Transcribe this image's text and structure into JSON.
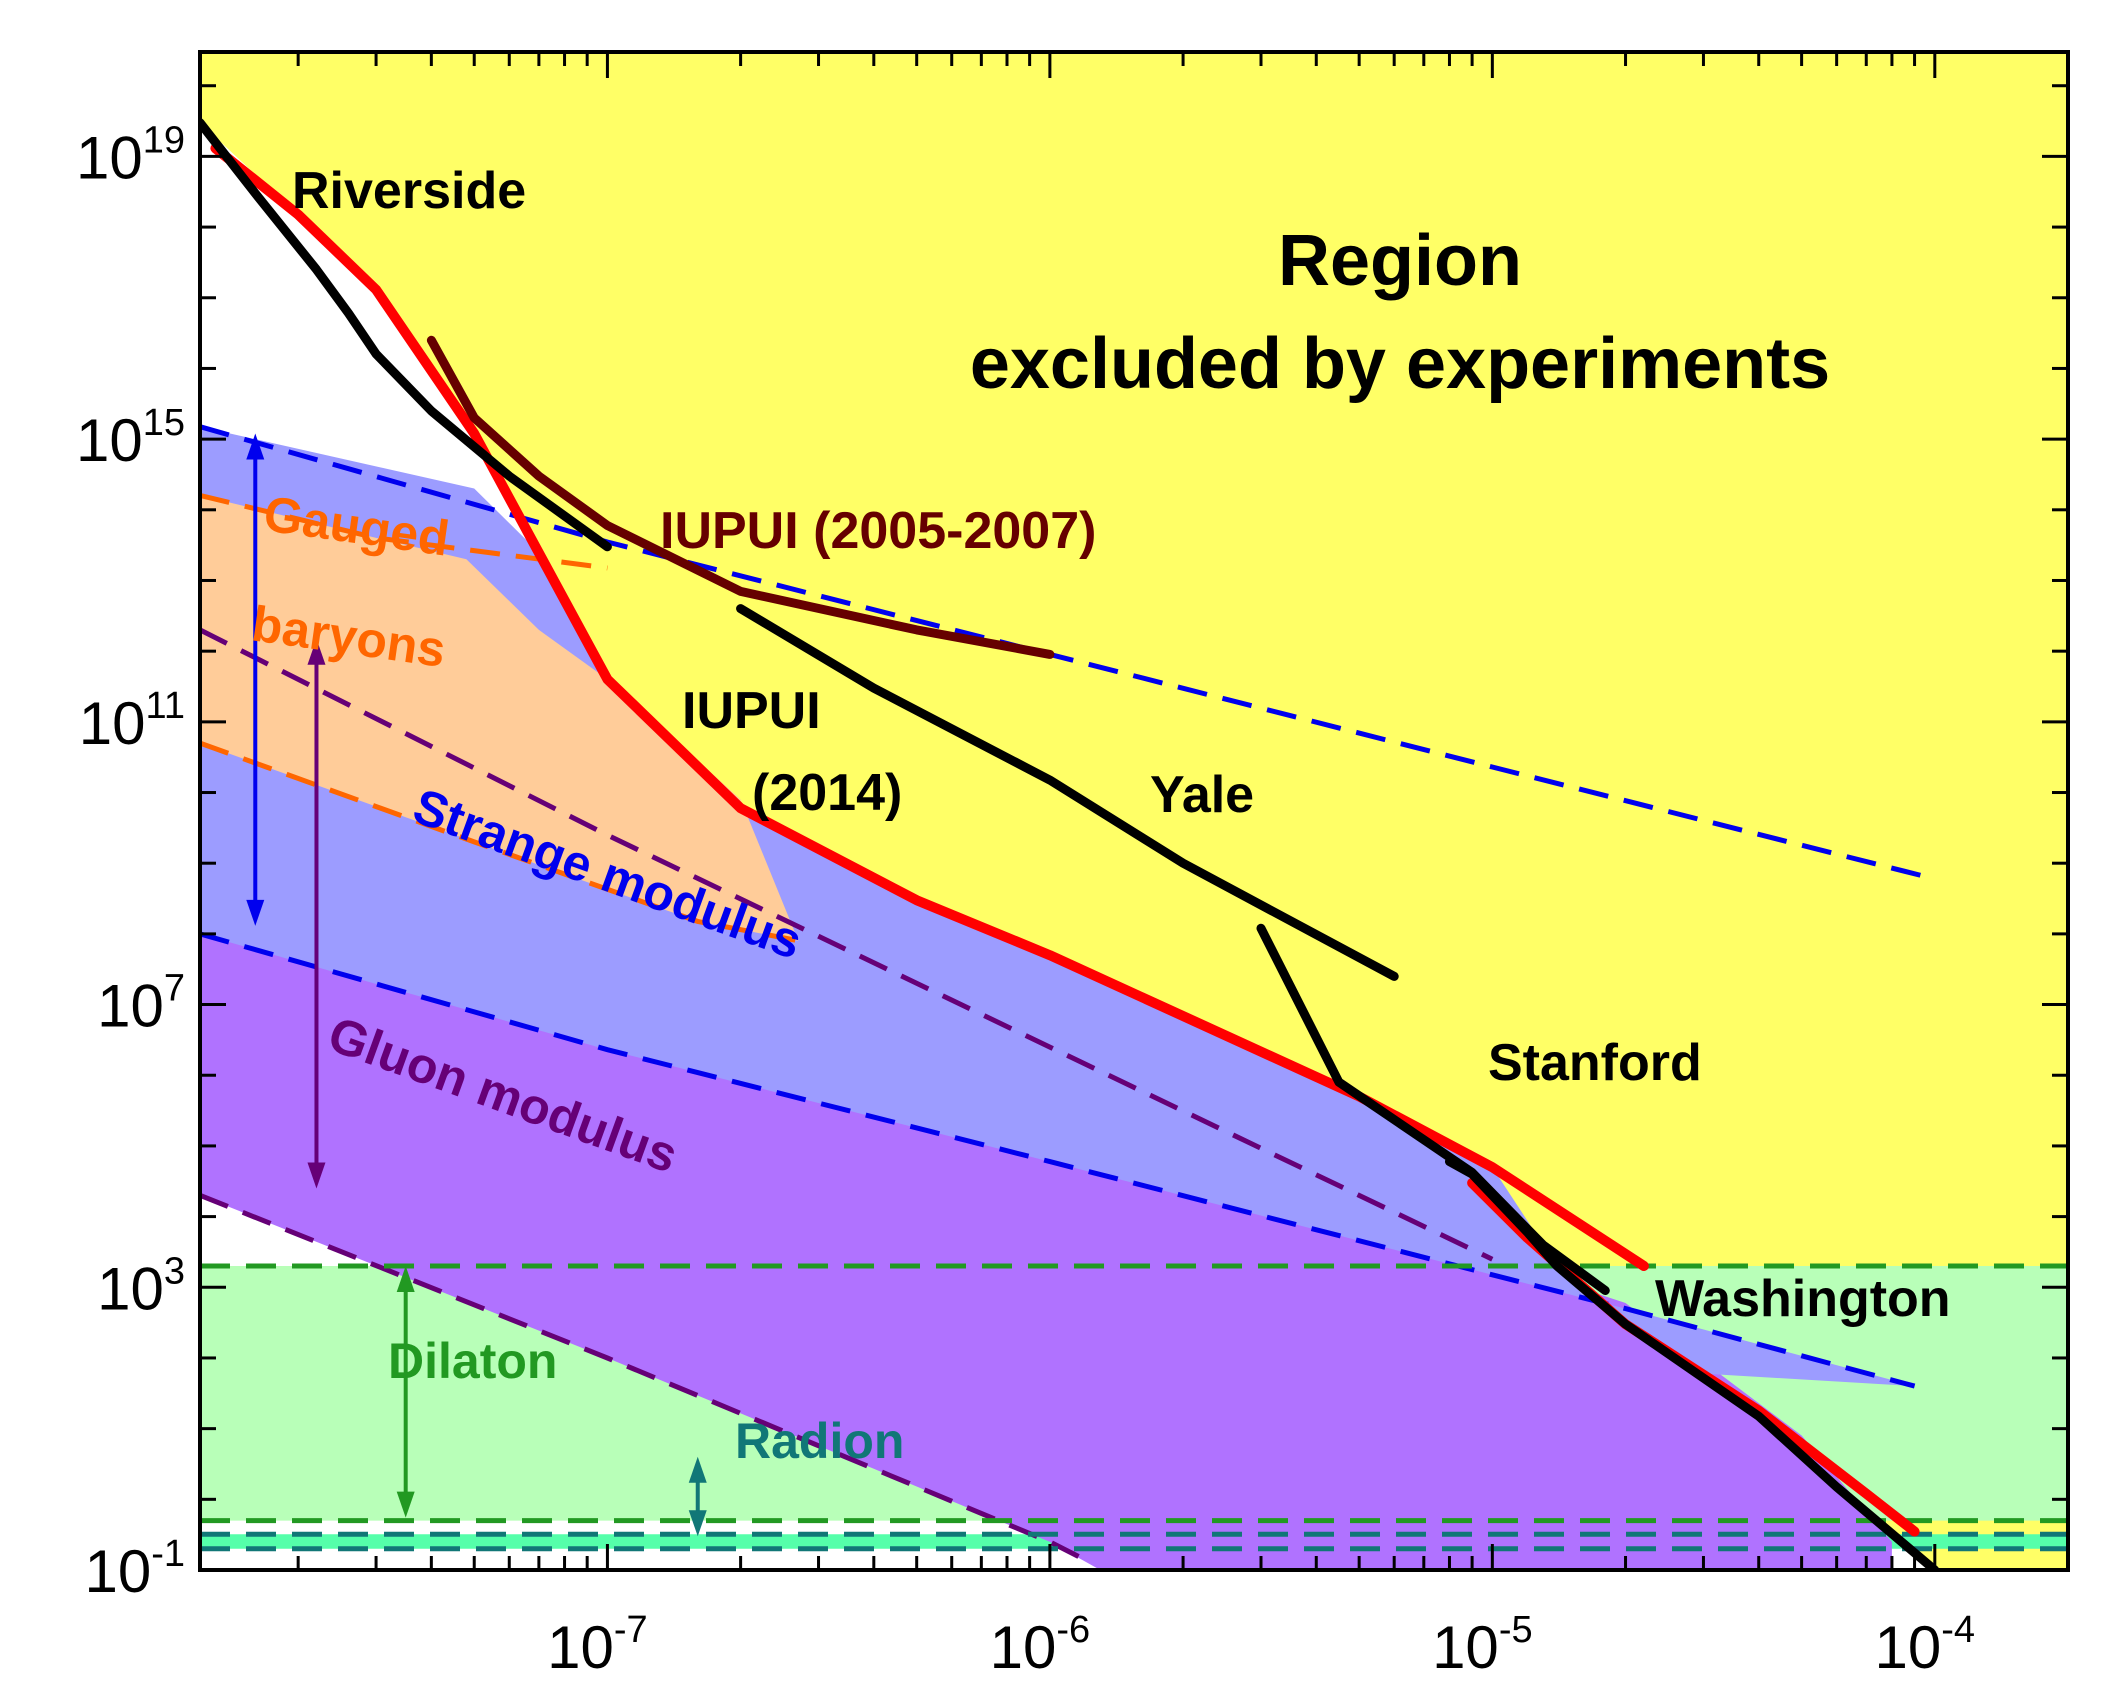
{
  "chart_data": {
    "type": "line",
    "title": "",
    "xlabel": "",
    "ylabel": "",
    "x_scale": "log",
    "y_scale": "log",
    "xlim": [
      1.2e-08,
      0.0002
    ],
    "ylim": [
      0.1,
      3e+20
    ],
    "grid": false,
    "colors": {
      "excluded": "#ffff66",
      "experiment": "#000000",
      "theory_red": "#ff0000",
      "iupui_2005": "#660000",
      "strange": "#9c9cff",
      "strange_line": "#0000ee",
      "gauged": "#ffcc99",
      "gauged_line": "#ff6600",
      "gluon": "#b072ff",
      "gluon_line": "#660077",
      "dilaton": "#b8ffb8",
      "dilaton_line": "#229922",
      "radion": "#55ffaa",
      "radion_line": "#117777"
    },
    "x_ticks": [
      {
        "value": 1e-07,
        "base": "10",
        "exp": "-7"
      },
      {
        "value": 1e-06,
        "base": "10",
        "exp": "-6"
      },
      {
        "value": 1e-05,
        "base": "10",
        "exp": "-5"
      },
      {
        "value": 0.0001,
        "base": "10",
        "exp": "-4"
      }
    ],
    "y_ticks": [
      {
        "value": 1e+19,
        "base": "10",
        "exp": "19"
      },
      {
        "value": 1000000000000000.0,
        "base": "10",
        "exp": "15"
      },
      {
        "value": 100000000000.0,
        "base": "10",
        "exp": "11"
      },
      {
        "value": 10000000.0,
        "base": "10",
        "exp": "7"
      },
      {
        "value": 1000.0,
        "base": "10",
        "exp": "3"
      },
      {
        "value": 0.1,
        "base": "10",
        "exp": "-1"
      }
    ],
    "excluded_region": {
      "label_line1": "Region",
      "label_line2": "excluded by experiments"
    },
    "bands": [
      {
        "name": "Strange modulus",
        "color_key": "strange",
        "line_key": "strange_line",
        "upper": [
          [
            1.2e-08,
            1500000000000000.0
          ],
          [
            1e-07,
            35000000000000.0
          ],
          [
            1e-06,
            900000000000.0
          ],
          [
            1e-05,
            23000000000.0
          ],
          [
            0.0001,
            600000000.0
          ]
        ],
        "lower": [
          [
            1.2e-08,
            100000000.0
          ],
          [
            1e-07,
            2300000.0
          ],
          [
            1e-06,
            60000.0
          ],
          [
            1e-05,
            1500.0
          ],
          [
            2e-05,
            500.0
          ],
          [
            9e-05,
            40
          ]
        ]
      },
      {
        "name": "Gauged baryons",
        "color_key": "gauged",
        "line_key": "gauged_line",
        "upper": [
          [
            1.2e-08,
            160000000000000.0
          ],
          [
            3e-08,
            40000000000000.0
          ],
          [
            1e-07,
            15000000000000.0
          ]
        ],
        "lower": [
          [
            1.2e-08,
            50000000000.0
          ],
          [
            5e-08,
            2000000000.0
          ],
          [
            1.6e-07,
            150000000.0
          ],
          [
            2.7e-07,
            80000000.0
          ]
        ]
      },
      {
        "name": "Gluon modulus",
        "color_key": "gluon",
        "line_key": "gluon_line",
        "upper": [
          [
            1.2e-08,
            2000000000000.0
          ],
          [
            1e-07,
            2500000000.0
          ],
          [
            1e-06,
            2500000.0
          ],
          [
            1e-05,
            2500.0
          ]
        ],
        "lower": [
          [
            1.2e-08,
            20000.0
          ],
          [
            1e-07,
            100.0
          ],
          [
            1e-06,
            0.25
          ],
          [
            1.2e-06,
            0.14
          ]
        ]
      },
      {
        "name": "Dilaton",
        "color_key": "dilaton",
        "line_key": "dilaton_line",
        "upper": [
          [
            1.2e-08,
            2000
          ],
          [
            0.0002,
            2000
          ]
        ],
        "lower": [
          [
            1.2e-08,
            0.5
          ],
          [
            0.0002,
            0.5
          ]
        ]
      },
      {
        "name": "Radion",
        "color_key": "radion",
        "line_key": "radion_line",
        "upper": [
          [
            1.2e-08,
            0.32
          ],
          [
            0.0002,
            0.32
          ]
        ],
        "lower": [
          [
            1.2e-08,
            0.2
          ],
          [
            0.0002,
            0.2
          ]
        ]
      }
    ],
    "series": [
      {
        "name": "Riverside",
        "color_key": "experiment",
        "points": [
          [
            1.2e-08,
            3e+19
          ],
          [
            1.6e-08,
            3e+18
          ],
          [
            2.2e-08,
            2.5e+17
          ],
          [
            2.6e-08,
            6e+16
          ],
          [
            3e-08,
            1.6e+16
          ],
          [
            4e-08,
            2500000000000000.0
          ],
          [
            6e-08,
            300000000000000.0
          ],
          [
            1e-07,
            30000000000000.0
          ]
        ]
      },
      {
        "name": "IUPUI (2005-2007)",
        "color_key": "iupui_2005",
        "points": [
          [
            4e-08,
            2.5e+16
          ],
          [
            5e-08,
            2000000000000000.0
          ],
          [
            7e-08,
            300000000000000.0
          ],
          [
            1e-07,
            60000000000000.0
          ],
          [
            2e-07,
            7000000000000.0
          ],
          [
            5e-07,
            2000000000000.0
          ],
          [
            1e-06,
            900000000000.0
          ]
        ]
      },
      {
        "name": "IUPUI (2014)",
        "color_key": "theory_red",
        "points": [
          [
            1.3e-08,
            1.3e+19
          ],
          [
            2e-08,
            1.5e+18
          ],
          [
            3e-08,
            1.3e+17
          ],
          [
            5e-08,
            1200000000000000.0
          ],
          [
            1e-07,
            400000000000.0
          ],
          [
            2e-07,
            6000000000.0
          ],
          [
            5e-07,
            300000000.0
          ],
          [
            1e-06,
            50000000.0
          ],
          [
            5e-06,
            500000.0
          ],
          [
            1e-05,
            50000.0
          ],
          [
            2.2e-05,
            2000.0
          ]
        ]
      },
      {
        "name": "Yale",
        "color_key": "experiment",
        "points": [
          [
            2e-07,
            4000000000000.0
          ],
          [
            4e-07,
            300000000000.0
          ],
          [
            1e-06,
            15000000000.0
          ],
          [
            2e-06,
            1000000000.0
          ],
          [
            6e-06,
            25000000.0
          ]
        ]
      },
      {
        "name": "Stanford",
        "color_key": "experiment",
        "points": [
          [
            3e-06,
            120000000.0
          ],
          [
            4.5e-06,
            800000.0
          ],
          [
            9e-06,
            42000.0
          ],
          [
            1.3e-05,
            4000.0
          ],
          [
            1.8e-05,
            900.0
          ]
        ]
      },
      {
        "name": "Washington",
        "color_key": "experiment",
        "points": [
          [
            8e-06,
            60000.0
          ],
          [
            9e-06,
            40000.0
          ],
          [
            1.2e-05,
            6000.0
          ],
          [
            1.4e-05,
            2000.0
          ],
          [
            2e-05,
            300.0
          ],
          [
            4e-05,
            15
          ],
          [
            6e-05,
            1.5
          ],
          [
            0.0001,
            0.1
          ]
        ]
      }
    ],
    "lower_red_points": [
      [
        9e-06,
        30000.0
      ],
      [
        1.2e-05,
        5000.0
      ],
      [
        2e-05,
        300.0
      ],
      [
        4e-05,
        18.0
      ],
      [
        7e-05,
        1.2
      ],
      [
        9e-05,
        0.35
      ]
    ],
    "arrows": [
      {
        "name": "strange-arrow",
        "color_key": "strange_line",
        "x": 1.6e-08,
        "y1": 1200000000000000.0,
        "y2": 130000000.0
      },
      {
        "name": "gluon-arrow",
        "color_key": "gluon_line",
        "x": 2.2e-08,
        "y1": 1500000000000.0,
        "y2": 25000.0
      },
      {
        "name": "dilaton-arrow",
        "color_key": "dilaton_line",
        "x": 3.5e-08,
        "y1": 2000,
        "y2": 0.55
      },
      {
        "name": "radion-arrow",
        "color_key": "radion_line",
        "x": 1.6e-07,
        "y1": 4,
        "y2": 0.3
      }
    ],
    "annotations": [
      {
        "name": "label-riverside",
        "text": "Riverside",
        "color_key": "experiment"
      },
      {
        "name": "label-iupui-2005",
        "text": "IUPUI (2005-2007)",
        "color_key": "iupui_2005"
      },
      {
        "name": "label-iupui-2014-line1",
        "text": "IUPUI",
        "color_key": "experiment"
      },
      {
        "name": "label-iupui-2014-line2",
        "text": "(2014)",
        "color_key": "experiment"
      },
      {
        "name": "label-yale",
        "text": "Yale",
        "color_key": "experiment"
      },
      {
        "name": "label-stanford",
        "text": "Stanford",
        "color_key": "experiment"
      },
      {
        "name": "label-washington",
        "text": "Washington",
        "color_key": "experiment"
      },
      {
        "name": "label-gauged-line1",
        "text": "Gauged",
        "color_key": "gauged_line"
      },
      {
        "name": "label-gauged-line2",
        "text": "baryons",
        "color_key": "gauged_line"
      },
      {
        "name": "label-strange",
        "text": "Strange modulus",
        "color_key": "strange_line"
      },
      {
        "name": "label-gluon",
        "text": "Gluon modulus",
        "color_key": "gluon_line"
      },
      {
        "name": "label-dilaton",
        "text": "Dilaton",
        "color_key": "dilaton_line"
      },
      {
        "name": "label-radion",
        "text": "Radion",
        "color_key": "radion_line"
      }
    ]
  }
}
